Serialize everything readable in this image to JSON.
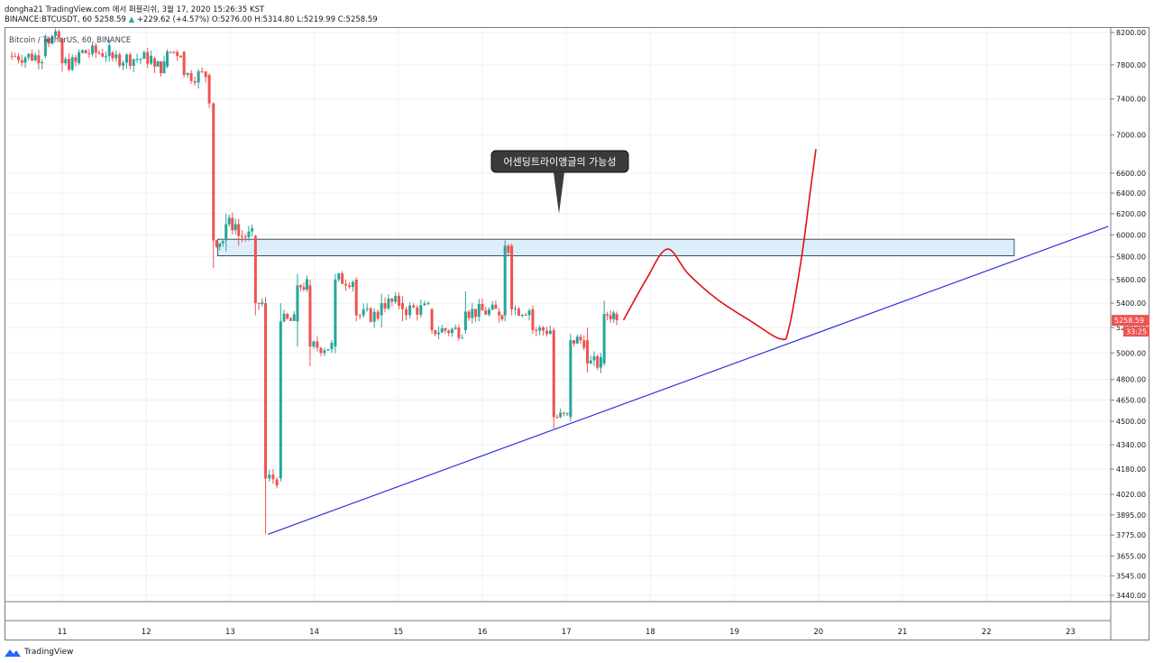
{
  "header": {
    "line1": "dongha21 TradingView.com 에서 퍼블리쉬, 3월 17, 2020 15:26:35 KST",
    "symbol": "BINANCE:BTCUSDT, 60",
    "last": "5258.59",
    "change": "+229.62 (+4.57%)",
    "ohlc_o": "O:5276.00",
    "ohlc_h": "H:5314.80",
    "ohlc_l": "L:5219.99",
    "ohlc_c": "C:5258.59"
  },
  "legend": "Bitcoin / TetherUS, 60, BINANCE",
  "annotation": "어센딩트라이앵글의 가능성",
  "footer": {
    "brand": "TradingView"
  },
  "colors": {
    "up": "#26a69a",
    "down": "#ef5350",
    "trend": "#3030d8",
    "zone_fill": "#dbeefa",
    "drawing": "#e01010",
    "callout": "#3a3a3a"
  },
  "chart_data": {
    "type": "candlestick",
    "x_ticks": [
      "11",
      "12",
      "13",
      "14",
      "15",
      "16",
      "17",
      "18",
      "19",
      "20",
      "21",
      "22",
      "23"
    ],
    "y_ticks": [
      "8200.00",
      "7800.00",
      "7400.00",
      "7000.00",
      "6600.00",
      "6400.00",
      "6200.00",
      "6000.00",
      "5800.00",
      "5600.00",
      "5400.00",
      "5200.00",
      "5000.00",
      "4800.00",
      "4650.00",
      "4500.00",
      "4340.00",
      "4180.00",
      "4020.00",
      "3895.00",
      "3775.00",
      "3655.00",
      "3545.00",
      "3440.00"
    ],
    "y_tick_values": [
      8200,
      7800,
      7400,
      7000,
      6600,
      6400,
      6200,
      6000,
      5800,
      5600,
      5400,
      5200,
      5000,
      4800,
      4650,
      4500,
      4340,
      4180,
      4020,
      3895,
      3775,
      3655,
      3545,
      3440
    ],
    "price_label": "5258.59",
    "countdown_label": "33:25",
    "ylim": [
      3440,
      8200
    ],
    "log_scale": true,
    "grid": true,
    "anchors": [
      {
        "day": 10.4,
        "open": 7910,
        "high": 7960,
        "low": 7860,
        "close": 7905
      },
      {
        "day": 10.8,
        "open": 7905,
        "high": 8180,
        "low": 7880,
        "close": 8120
      },
      {
        "day": 11.0,
        "open": 8120,
        "high": 8140,
        "low": 7720,
        "close": 7820
      },
      {
        "day": 11.2,
        "open": 7820,
        "high": 7990,
        "low": 7800,
        "close": 7950
      },
      {
        "day": 11.6,
        "open": 7950,
        "high": 7970,
        "low": 7840,
        "close": 7880
      },
      {
        "day": 12.1,
        "open": 7880,
        "high": 7900,
        "low": 7700,
        "close": 7780
      },
      {
        "day": 12.25,
        "open": 7780,
        "high": 7990,
        "low": 7760,
        "close": 7960
      },
      {
        "day": 12.45,
        "open": 7960,
        "high": 7970,
        "low": 7650,
        "close": 7680
      },
      {
        "day": 12.75,
        "open": 7680,
        "high": 7700,
        "low": 7300,
        "close": 7350
      },
      {
        "day": 12.8,
        "open": 7350,
        "high": 7360,
        "low": 5700,
        "close": 5950
      },
      {
        "day": 12.95,
        "open": 5950,
        "high": 6200,
        "low": 5850,
        "close": 6100
      },
      {
        "day": 13.1,
        "open": 6100,
        "high": 6150,
        "low": 5900,
        "close": 5990
      },
      {
        "day": 13.3,
        "open": 5990,
        "high": 6000,
        "low": 5300,
        "close": 5400
      },
      {
        "day": 13.42,
        "open": 5400,
        "high": 5450,
        "low": 3780,
        "close": 4120
      },
      {
        "day": 13.6,
        "open": 4120,
        "high": 5400,
        "low": 4100,
        "close": 5250
      },
      {
        "day": 13.8,
        "open": 5250,
        "high": 5650,
        "low": 5050,
        "close": 5550
      },
      {
        "day": 13.95,
        "open": 5550,
        "high": 5600,
        "low": 4900,
        "close": 5050
      },
      {
        "day": 14.25,
        "open": 5050,
        "high": 5650,
        "low": 5000,
        "close": 5600
      },
      {
        "day": 14.5,
        "open": 5600,
        "high": 5620,
        "low": 5250,
        "close": 5300
      },
      {
        "day": 14.8,
        "open": 5300,
        "high": 5480,
        "low": 5200,
        "close": 5400
      },
      {
        "day": 15.05,
        "open": 5400,
        "high": 5460,
        "low": 5250,
        "close": 5350
      },
      {
        "day": 15.4,
        "open": 5350,
        "high": 5360,
        "low": 5150,
        "close": 5180
      },
      {
        "day": 15.8,
        "open": 5180,
        "high": 5500,
        "low": 5150,
        "close": 5330
      },
      {
        "day": 16.2,
        "open": 5330,
        "high": 5360,
        "low": 5240,
        "close": 5300
      },
      {
        "day": 16.27,
        "open": 5300,
        "high": 5950,
        "low": 5250,
        "close": 5900
      },
      {
        "day": 16.35,
        "open": 5900,
        "high": 5920,
        "low": 5300,
        "close": 5350
      },
      {
        "day": 16.6,
        "open": 5350,
        "high": 5380,
        "low": 5150,
        "close": 5180
      },
      {
        "day": 16.85,
        "open": 5180,
        "high": 5200,
        "low": 4450,
        "close": 4530
      },
      {
        "day": 17.05,
        "open": 4530,
        "high": 5150,
        "low": 4500,
        "close": 5100
      },
      {
        "day": 17.25,
        "open": 5100,
        "high": 5200,
        "low": 4850,
        "close": 4920
      },
      {
        "day": 17.45,
        "open": 4920,
        "high": 5420,
        "low": 4900,
        "close": 5310
      },
      {
        "day": 17.6,
        "open": 5310,
        "high": 5330,
        "low": 5220,
        "close": 5258.59
      }
    ],
    "resistance_zone": {
      "x1": 12.85,
      "x2": 22.33,
      "y1": 5810,
      "y2": 5960
    },
    "trendline": {
      "x1": 13.45,
      "y1": 3780,
      "x2": 23.45,
      "y2": 6080
    },
    "projection": [
      {
        "x": 17.68,
        "y": 5260
      },
      {
        "x": 17.95,
        "y": 5600
      },
      {
        "x": 18.2,
        "y": 5870
      },
      {
        "x": 18.45,
        "y": 5650
      },
      {
        "x": 18.8,
        "y": 5430
      },
      {
        "x": 19.2,
        "y": 5250
      },
      {
        "x": 19.55,
        "y": 5110
      },
      {
        "x": 19.65,
        "y": 5200
      },
      {
        "x": 19.8,
        "y": 5800
      },
      {
        "x": 19.9,
        "y": 6400
      },
      {
        "x": 19.97,
        "y": 6850
      }
    ]
  }
}
